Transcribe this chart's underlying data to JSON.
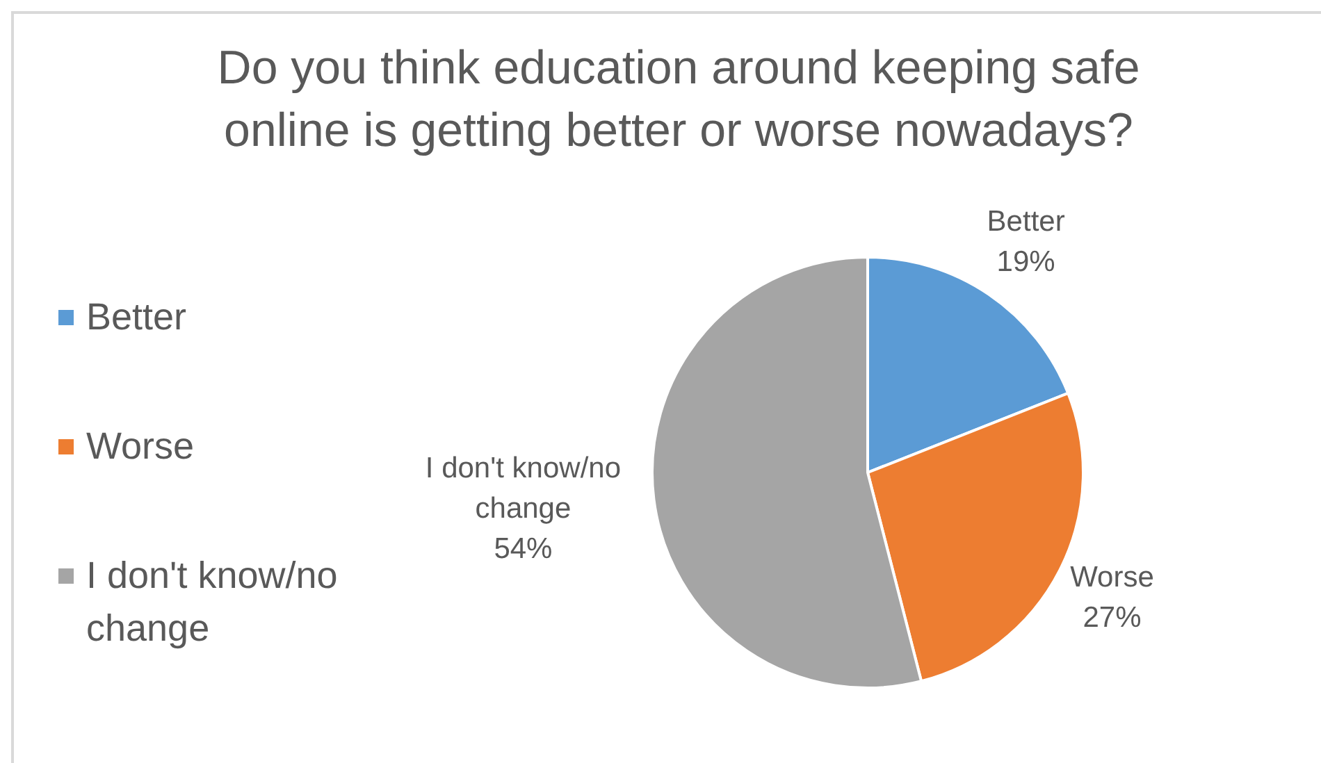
{
  "chart_data": {
    "type": "pie",
    "title": "Do you think education around keeping safe online is getting better or worse nowadays?",
    "categories": [
      "Better",
      "Worse",
      "I don't know/no change"
    ],
    "values": [
      19,
      27,
      54
    ],
    "colors": [
      "#5b9bd5",
      "#ed7d31",
      "#a5a5a5"
    ],
    "value_labels": [
      "19%",
      "27%",
      "54%"
    ],
    "legend": "left"
  }
}
